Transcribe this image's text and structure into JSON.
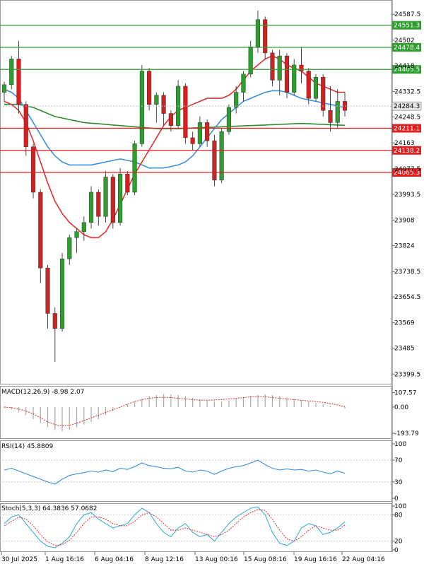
{
  "chart_data": {
    "type": "candlestick",
    "main": {
      "price_ticks": [
        24587.5,
        24502.0,
        24418.0,
        24332.5,
        24248.5,
        24163.0,
        24077.5,
        23993.5,
        23908.0,
        23824.0,
        23738.5,
        23654.5,
        23569.0,
        23485.0,
        23399.5
      ],
      "ylim": [
        23370,
        24630
      ],
      "current_price": 24284.3,
      "levels": [
        {
          "label": "24551.3",
          "value": 24551.3,
          "color": "#2e9e2e"
        },
        {
          "label": "24478.4",
          "value": 24478.4,
          "color": "#2e9e2e"
        },
        {
          "label": "24405.5",
          "value": 24405.5,
          "color": "#2e9e2e"
        },
        {
          "label": "24211.1",
          "value": 24211.1,
          "color": "#e02020"
        },
        {
          "label": "24138.2",
          "value": 24138.2,
          "color": "#e02020"
        },
        {
          "label": "24065.3",
          "value": 24065.3,
          "color": "#e02020"
        }
      ],
      "current_label": "24284.3",
      "x_labels": [
        "30 Jul 2025",
        "1 Aug 16:16",
        "6 Aug 04:16",
        "8 Aug 12:16",
        "13 Aug 00:16",
        "15 Aug 08:16",
        "19 Aug 16:16",
        "22 Aug 04:16"
      ],
      "candles": [
        [
          24330,
          24365,
          24300,
          24355
        ],
        [
          24355,
          24450,
          24340,
          24440
        ],
        [
          24440,
          24500,
          24260,
          24290
        ],
        [
          24290,
          24300,
          24120,
          24150
        ],
        [
          24150,
          24160,
          23980,
          24000
        ],
        [
          24000,
          24010,
          23700,
          23750
        ],
        [
          23750,
          23760,
          23550,
          23600
        ],
        [
          23600,
          23620,
          23440,
          23550
        ],
        [
          23550,
          23800,
          23540,
          23780
        ],
        [
          23780,
          23860,
          23760,
          23850
        ],
        [
          23850,
          23880,
          23800,
          23870
        ],
        [
          23870,
          23920,
          23840,
          23900
        ],
        [
          23900,
          24020,
          23880,
          24000
        ],
        [
          24000,
          24010,
          23890,
          23920
        ],
        [
          23920,
          24070,
          23900,
          24050
        ],
        [
          24050,
          24060,
          23880,
          23900
        ],
        [
          23900,
          24080,
          23890,
          24060
        ],
        [
          24060,
          24070,
          23990,
          24000
        ],
        [
          24000,
          24170,
          23990,
          24160
        ],
        [
          24160,
          24420,
          24150,
          24400
        ],
        [
          24400,
          24410,
          24270,
          24290
        ],
        [
          24290,
          24330,
          24230,
          24320
        ],
        [
          24320,
          24330,
          24220,
          24260
        ],
        [
          24260,
          24270,
          24200,
          24220
        ],
        [
          24220,
          24370,
          24210,
          24350
        ],
        [
          24350,
          24360,
          24160,
          24180
        ],
        [
          24180,
          24200,
          24140,
          24160
        ],
        [
          24160,
          24250,
          24150,
          24230
        ],
        [
          24230,
          24240,
          24150,
          24170
        ],
        [
          24170,
          24190,
          24020,
          24040
        ],
        [
          24040,
          24210,
          24030,
          24200
        ],
        [
          24200,
          24290,
          24190,
          24280
        ],
        [
          24280,
          24350,
          24260,
          24330
        ],
        [
          24330,
          24400,
          24300,
          24390
        ],
        [
          24390,
          24500,
          24380,
          24480
        ],
        [
          24480,
          24600,
          24460,
          24570
        ],
        [
          24570,
          24580,
          24440,
          24460
        ],
        [
          24460,
          24470,
          24350,
          24370
        ],
        [
          24370,
          24470,
          24320,
          24450
        ],
        [
          24450,
          24460,
          24310,
          24330
        ],
        [
          24330,
          24440,
          24320,
          24420
        ],
        [
          24420,
          24480,
          24360,
          24400
        ],
        [
          24400,
          24410,
          24290,
          24310
        ],
        [
          24310,
          24390,
          24300,
          24380
        ],
        [
          24380,
          24390,
          24250,
          24270
        ],
        [
          24270,
          24350,
          24200,
          24230
        ],
        [
          24230,
          24340,
          24210,
          24300
        ],
        [
          24300,
          24330,
          24250,
          24270
        ]
      ],
      "ma_fast_color": "#e03030",
      "ma_fast": [
        24300,
        24290,
        24270,
        24230,
        24170,
        24100,
        24030,
        23970,
        23930,
        23900,
        23880,
        23860,
        23850,
        23850,
        23870,
        23910,
        23960,
        24010,
        24060,
        24100,
        24140,
        24180,
        24220,
        24250,
        24270,
        24280,
        24290,
        24300,
        24310,
        24310,
        24310,
        24320,
        24340,
        24370,
        24400,
        24420,
        24440,
        24450,
        24440,
        24420,
        24410,
        24400,
        24380,
        24360,
        24350,
        24340,
        24330,
        24330
      ],
      "ma_mid_color": "#3a8fdc",
      "ma_mid": [
        24340,
        24330,
        24310,
        24270,
        24230,
        24190,
        24150,
        24120,
        24100,
        24090,
        24090,
        24090,
        24090,
        24095,
        24100,
        24105,
        24110,
        24105,
        24100,
        24090,
        24080,
        24080,
        24080,
        24085,
        24090,
        24100,
        24120,
        24150,
        24180,
        24210,
        24240,
        24260,
        24280,
        24300,
        24310,
        24320,
        24330,
        24335,
        24335,
        24330,
        24320,
        24310,
        24305,
        24300,
        24295,
        24290,
        24285,
        24280
      ],
      "ma_slow_color": "#2e8b2e",
      "ma_slow": [
        24290,
        24290,
        24290,
        24285,
        24280,
        24270,
        24260,
        24250,
        24245,
        24240,
        24235,
        24230,
        24228,
        24226,
        24224,
        24222,
        24220,
        24218,
        24216,
        24214,
        24212,
        24210,
        24210,
        24210,
        24210,
        24211,
        24212,
        24213,
        24214,
        24215,
        24216,
        24217,
        24218,
        24219,
        24220,
        24221,
        24222,
        24223,
        24224,
        24225,
        24226,
        24227,
        24226,
        24225,
        24224,
        24223,
        24222,
        24221
      ]
    },
    "macd": {
      "label": "MACD(12,26,9) -8.98 2.07",
      "ticks": [
        "107.57",
        "0.00",
        "-193.79"
      ],
      "tick_values": [
        107.57,
        0,
        -193.79
      ],
      "ylim": [
        -210,
        125
      ],
      "histogram": [
        -10,
        -20,
        -40,
        -60,
        -90,
        -120,
        -150,
        -170,
        -180,
        -170,
        -150,
        -130,
        -110,
        -90,
        -60,
        -30,
        0,
        20,
        40,
        60,
        80,
        90,
        95,
        95,
        90,
        80,
        70,
        60,
        50,
        40,
        40,
        50,
        60,
        70,
        80,
        90,
        95,
        90,
        80,
        70,
        60,
        50,
        40,
        30,
        20,
        10,
        0,
        -9
      ],
      "signal": [
        0,
        -5,
        -15,
        -30,
        -50,
        -80,
        -110,
        -130,
        -140,
        -135,
        -120,
        -100,
        -80,
        -60,
        -40,
        -20,
        0,
        20,
        40,
        55,
        65,
        70,
        72,
        70,
        65,
        60,
        55,
        50,
        50,
        52,
        55,
        60,
        65,
        70,
        75,
        78,
        75,
        70,
        65,
        60,
        55,
        50,
        45,
        40,
        35,
        25,
        15,
        2
      ]
    },
    "rsi": {
      "label": "RSI(14) 45.8809",
      "ticks": [
        "100",
        "70",
        "30",
        "0"
      ],
      "tick_values": [
        100,
        70,
        30,
        0
      ],
      "ylim": [
        0,
        100
      ],
      "values": [
        52,
        55,
        50,
        45,
        40,
        35,
        30,
        26,
        35,
        42,
        45,
        47,
        50,
        48,
        52,
        49,
        55,
        53,
        58,
        65,
        60,
        58,
        55,
        54,
        57,
        50,
        48,
        52,
        50,
        44,
        50,
        55,
        58,
        60,
        65,
        70,
        62,
        55,
        52,
        54,
        52,
        53,
        50,
        52,
        48,
        45,
        50,
        46
      ]
    },
    "stoch": {
      "label": "Stoch(5,3,3) 64.3836 57.0682",
      "ticks": [
        "100",
        "80",
        "20",
        "0"
      ],
      "tick_values": [
        100,
        80,
        20,
        0
      ],
      "ylim": [
        0,
        100
      ],
      "k": [
        60,
        75,
        80,
        60,
        40,
        20,
        8,
        5,
        15,
        30,
        60,
        80,
        85,
        70,
        60,
        50,
        55,
        60,
        80,
        95,
        85,
        60,
        40,
        30,
        50,
        60,
        40,
        30,
        35,
        20,
        40,
        60,
        75,
        85,
        95,
        98,
        80,
        40,
        15,
        10,
        20,
        50,
        60,
        55,
        35,
        40,
        50,
        64
      ],
      "d": [
        55,
        65,
        75,
        70,
        55,
        35,
        18,
        10,
        12,
        22,
        40,
        60,
        75,
        75,
        70,
        60,
        55,
        55,
        65,
        80,
        85,
        75,
        60,
        45,
        45,
        50,
        45,
        40,
        35,
        30,
        35,
        45,
        60,
        75,
        85,
        92,
        90,
        70,
        45,
        25,
        20,
        30,
        45,
        55,
        50,
        45,
        45,
        57
      ]
    }
  }
}
